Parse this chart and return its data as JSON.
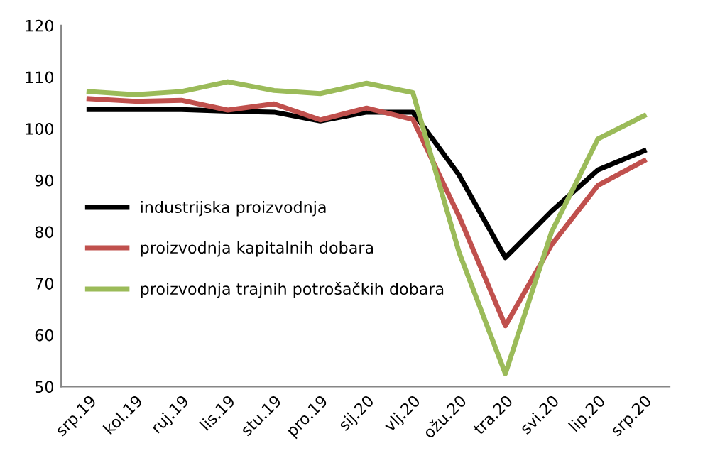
{
  "chart_data": {
    "type": "line",
    "categories": [
      "srp.19",
      "kol.19",
      "ruj.19",
      "lis.19",
      "stu.19",
      "pro.19",
      "sij.20",
      "vlj.20",
      "ožu.20",
      "tra.20",
      "svi.20",
      "lip.20",
      "srp.20"
    ],
    "series": [
      {
        "name": "industrijska proizvodnja",
        "color": "#000000",
        "values": [
          103.7,
          103.7,
          103.7,
          103.4,
          103.2,
          101.5,
          103.2,
          103.2,
          91,
          75,
          84,
          92,
          95.7
        ]
      },
      {
        "name": "proizvodnja kapitalnih dobara",
        "color": "#c0504d",
        "values": [
          105.8,
          105.3,
          105.5,
          103.6,
          104.8,
          101.7,
          104,
          101.8,
          83,
          61.8,
          77.5,
          89,
          93.8
        ]
      },
      {
        "name": "proizvodnja trajnih potrošačkih dobara",
        "color": "#9bbb59",
        "values": [
          107.2,
          106.6,
          107.2,
          109.1,
          107.4,
          106.8,
          108.8,
          107,
          76,
          52.5,
          80,
          98,
          102.5
        ]
      }
    ],
    "ylim": [
      50,
      120
    ],
    "yticks": [
      50,
      60,
      70,
      80,
      90,
      100,
      110,
      120
    ],
    "grid": false,
    "legend": "left",
    "marker": "none",
    "line_style": "solid"
  }
}
